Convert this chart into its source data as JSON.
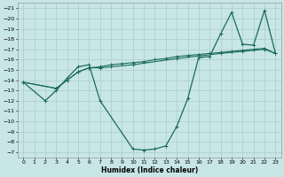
{
  "xlabel": "Humidex (Indice chaleur)",
  "bg_color": "#c8e6e6",
  "grid_color": "#aacccc",
  "line_color": "#1a6b5a",
  "xlim": [
    -0.5,
    23.5
  ],
  "ylim": [
    -21.5,
    -6.5
  ],
  "xticks": [
    0,
    1,
    2,
    3,
    4,
    5,
    6,
    7,
    8,
    9,
    10,
    11,
    12,
    13,
    14,
    15,
    16,
    17,
    18,
    19,
    20,
    21,
    22,
    23
  ],
  "yticks": [
    -7,
    -8,
    -9,
    -10,
    -11,
    -12,
    -13,
    -14,
    -15,
    -16,
    -17,
    -18,
    -19,
    -20,
    -21
  ],
  "curve1_x": [
    0,
    2,
    3,
    4,
    5,
    6,
    7,
    10,
    11,
    12,
    13,
    14,
    15,
    16,
    17,
    18,
    19,
    20,
    21,
    22,
    23
  ],
  "curve1_y": [
    -13.8,
    -12.0,
    -13.0,
    -14.2,
    -15.3,
    -15.5,
    -12.0,
    -7.3,
    -7.2,
    -7.3,
    -7.6,
    -9.5,
    -12.2,
    -16.2,
    -16.3,
    -18.5,
    -20.6,
    -17.5,
    -17.4,
    -20.8,
    -16.6
  ],
  "curve2_x": [
    0,
    3,
    4,
    5,
    6,
    7,
    8,
    9,
    10,
    11,
    12,
    13,
    14,
    15,
    16,
    17,
    18,
    19,
    20,
    21,
    22,
    23
  ],
  "curve2_y": [
    -13.8,
    -13.2,
    -14.0,
    -14.8,
    -15.2,
    -15.3,
    -15.5,
    -15.6,
    -15.7,
    -15.8,
    -16.0,
    -16.1,
    -16.3,
    -16.4,
    -16.5,
    -16.6,
    -16.7,
    -16.8,
    -16.9,
    -17.0,
    -17.1,
    -16.6
  ],
  "curve3_x": [
    0,
    3,
    5,
    6,
    7,
    8,
    10,
    14,
    18,
    20,
    22,
    23
  ],
  "curve3_y": [
    -13.8,
    -13.2,
    -14.8,
    -15.2,
    -15.2,
    -15.3,
    -15.5,
    -16.1,
    -16.6,
    -16.8,
    -17.0,
    -16.6
  ],
  "marker_size": 2.5,
  "tick_fontsize": 4.5,
  "xlabel_fontsize": 5.5
}
